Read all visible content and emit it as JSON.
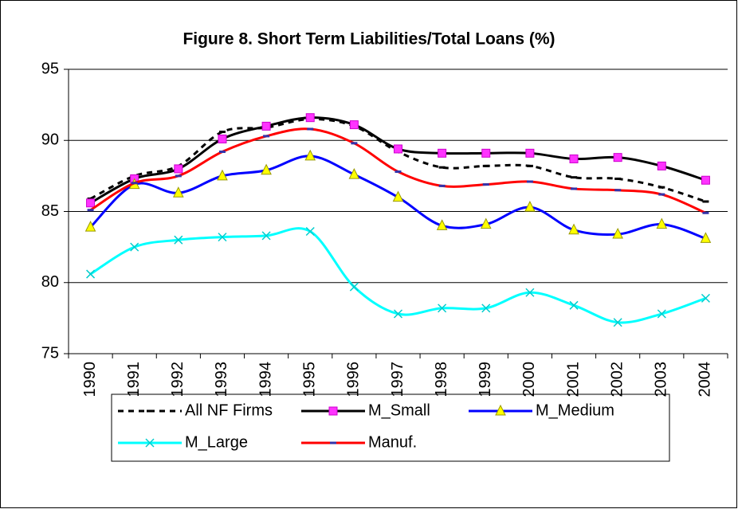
{
  "chart_data": {
    "type": "line",
    "title": "Figure 8. Short Term Liabilities/Total Loans (%)",
    "categories": [
      "1990",
      "1991",
      "1992",
      "1993",
      "1994",
      "1995",
      "1996",
      "1997",
      "1998",
      "1999",
      "2000",
      "2001",
      "2002",
      "2003",
      "2004"
    ],
    "ylim": [
      75,
      95
    ],
    "yticks": [
      75,
      80,
      85,
      90,
      95
    ],
    "grid": true,
    "series": [
      {
        "name": "All NF Firms",
        "color": "#000000",
        "dash": true,
        "marker": "dash",
        "marker_color": "#000000",
        "values": [
          85.9,
          87.5,
          88.2,
          90.6,
          90.9,
          91.5,
          91.0,
          89.2,
          88.1,
          88.2,
          88.2,
          87.4,
          87.3,
          86.7,
          85.7
        ]
      },
      {
        "name": "M_Small",
        "color": "#000000",
        "dash": false,
        "marker": "square",
        "marker_color": "#ff33ff",
        "values": [
          85.6,
          87.3,
          88.0,
          90.1,
          91.0,
          91.6,
          91.1,
          89.4,
          89.1,
          89.1,
          89.1,
          88.7,
          88.8,
          88.2,
          87.2
        ]
      },
      {
        "name": "M_Medium",
        "color": "#0000ff",
        "dash": false,
        "marker": "triangle",
        "marker_color": "#ffff00",
        "values": [
          83.9,
          86.9,
          86.3,
          87.5,
          87.9,
          88.9,
          87.6,
          86.0,
          84.0,
          84.1,
          85.3,
          83.7,
          83.4,
          84.1,
          83.1
        ]
      },
      {
        "name": "M_Large",
        "color": "#00ffff",
        "dash": false,
        "marker": "x",
        "marker_color": "#00cccc",
        "values": [
          80.6,
          82.5,
          83.0,
          83.2,
          83.3,
          83.6,
          79.7,
          77.8,
          78.2,
          78.2,
          79.3,
          78.4,
          77.2,
          77.8,
          78.9
        ]
      },
      {
        "name": "Manuf.",
        "color": "#ff0000",
        "dash": false,
        "marker": "dash",
        "marker_color": "#3333aa",
        "values": [
          85.1,
          87.0,
          87.5,
          89.2,
          90.3,
          90.8,
          89.8,
          87.8,
          86.8,
          86.9,
          87.1,
          86.6,
          86.5,
          86.2,
          84.9
        ]
      }
    ]
  }
}
